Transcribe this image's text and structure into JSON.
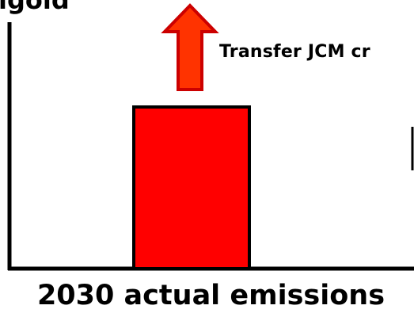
{
  "title_fragment": "igoid",
  "transfer_label": "Transfer JCM cr",
  "x_axis_label": "2030 actual emissions",
  "colors": {
    "bar_fill": "#ff0000",
    "arrow_fill": "#ff3300",
    "arrow_stroke": "#cc0000",
    "axis": "#000000"
  }
}
